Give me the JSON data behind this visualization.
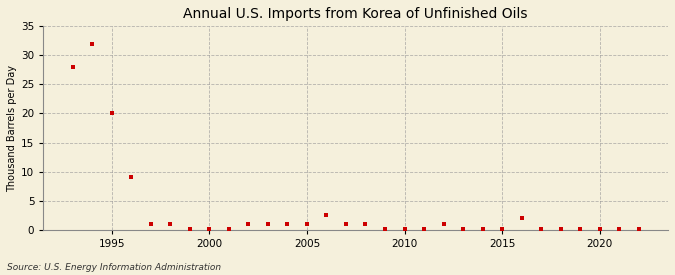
{
  "title": "Annual U.S. Imports from Korea of Unfinished Oils",
  "ylabel": "Thousand Barrels per Day",
  "source": "Source: U.S. Energy Information Administration",
  "background_color": "#f5f0dc",
  "marker_color": "#cc0000",
  "grid_color": "#999999",
  "years": [
    1993,
    1994,
    1995,
    1996,
    1997,
    1998,
    1999,
    2000,
    2001,
    2002,
    2003,
    2004,
    2005,
    2006,
    2007,
    2008,
    2009,
    2010,
    2011,
    2012,
    2013,
    2014,
    2015,
    2016,
    2017,
    2018,
    2019,
    2020,
    2021,
    2022
  ],
  "values": [
    28,
    32,
    20,
    9,
    1,
    1,
    0.2,
    0.1,
    0.2,
    1,
    1,
    1,
    1,
    2.5,
    1,
    1,
    0.2,
    0.1,
    0.1,
    1,
    0.1,
    0.1,
    0.1,
    2,
    0.1,
    0.1,
    0.1,
    0.1,
    0.1,
    0.2
  ],
  "xlim": [
    1991.5,
    2023.5
  ],
  "ylim": [
    0,
    35
  ],
  "yticks": [
    0,
    5,
    10,
    15,
    20,
    25,
    30,
    35
  ],
  "xticks": [
    1995,
    2000,
    2005,
    2010,
    2015,
    2020
  ],
  "title_fontsize": 10,
  "ylabel_fontsize": 7,
  "tick_fontsize": 7.5,
  "source_fontsize": 6.5
}
